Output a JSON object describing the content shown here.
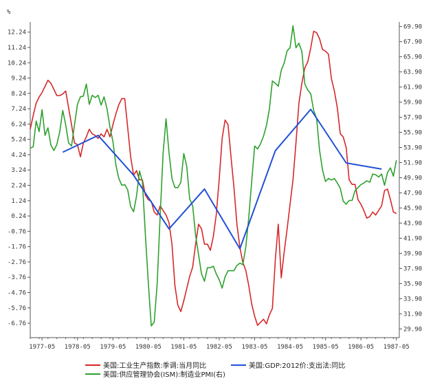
{
  "chart_data": {
    "type": "line",
    "title": "",
    "y_unit_label": "%",
    "x_ticks": [
      "1977-05",
      "1978-05",
      "1979-05",
      "1980-05",
      "1981-05",
      "1982-05",
      "1983-05",
      "1984-05",
      "1985-05",
      "1986-05",
      "1987-05"
    ],
    "y_left_ticks": [
      "12.24",
      "11.24",
      "10.24",
      "9.24",
      "8.24",
      "7.24",
      "6.24",
      "5.24",
      "4.24",
      "3.24",
      "2.24",
      "1.24",
      "0.24",
      "-0.76",
      "-1.76",
      "-2.76",
      "-3.76",
      "-4.76",
      "-5.76",
      "-6.76"
    ],
    "y_right_ticks": [
      "69.90",
      "67.90",
      "65.90",
      "63.90",
      "61.90",
      "59.90",
      "57.90",
      "55.90",
      "53.90",
      "51.90",
      "49.90",
      "47.90",
      "45.90",
      "43.90",
      "41.90",
      "39.90",
      "37.90",
      "35.90",
      "33.90",
      "31.90",
      "29.90"
    ],
    "y_left_range": [
      -7.7,
      12.9
    ],
    "y_right_range": [
      28.75,
      70.5
    ],
    "x_range": [
      "1977-01",
      "1987-06"
    ],
    "grid": false,
    "legend_placement": "bottom",
    "colors": {
      "ip": "#d62728",
      "pmi": "#2ca02c",
      "gdp": "#1f4fd6",
      "axis": "#555555"
    },
    "series": [
      {
        "key": "ip",
        "name": "美国:工业生产指数:季调:当月同比",
        "axis": "left",
        "points": [
          [
            "1977-01",
            5.9
          ],
          [
            "1977-02",
            6.8
          ],
          [
            "1977-03",
            7.6
          ],
          [
            "1977-04",
            8.0
          ],
          [
            "1977-05",
            8.3
          ],
          [
            "1977-06",
            8.7
          ],
          [
            "1977-07",
            9.1
          ],
          [
            "1977-08",
            8.9
          ],
          [
            "1977-09",
            8.5
          ],
          [
            "1977-10",
            8.1
          ],
          [
            "1977-11",
            8.1
          ],
          [
            "1977-12",
            8.2
          ],
          [
            "1978-01",
            8.4
          ],
          [
            "1978-02",
            7.3
          ],
          [
            "1978-03",
            6.2
          ],
          [
            "1978-04",
            5.0
          ],
          [
            "1978-05",
            4.9
          ],
          [
            "1978-06",
            4.1
          ],
          [
            "1978-07",
            5.0
          ],
          [
            "1978-08",
            5.4
          ],
          [
            "1978-09",
            5.9
          ],
          [
            "1978-10",
            5.6
          ],
          [
            "1978-11",
            5.5
          ],
          [
            "1978-12",
            5.3
          ],
          [
            "1979-01",
            5.6
          ],
          [
            "1979-02",
            5.4
          ],
          [
            "1979-03",
            5.9
          ],
          [
            "1979-04",
            5.4
          ],
          [
            "1979-05",
            6.2
          ],
          [
            "1979-06",
            6.9
          ],
          [
            "1979-07",
            7.5
          ],
          [
            "1979-08",
            7.9
          ],
          [
            "1979-09",
            7.9
          ],
          [
            "1979-10",
            6.0
          ],
          [
            "1979-11",
            4.1
          ],
          [
            "1979-12",
            2.9
          ],
          [
            "1980-01",
            3.2
          ],
          [
            "1980-02",
            2.6
          ],
          [
            "1980-03",
            2.6
          ],
          [
            "1980-04",
            1.6
          ],
          [
            "1980-05",
            1.3
          ],
          [
            "1980-06",
            1.2
          ],
          [
            "1980-07",
            0.5
          ],
          [
            "1980-08",
            0.3
          ],
          [
            "1980-09",
            0.9
          ],
          [
            "1980-10",
            0.6
          ],
          [
            "1980-11",
            0.3
          ],
          [
            "1980-12",
            -0.2
          ],
          [
            "1981-01",
            -1.6
          ],
          [
            "1981-02",
            -4.3
          ],
          [
            "1981-03",
            -5.6
          ],
          [
            "1981-04",
            -6.0
          ],
          [
            "1981-05",
            -5.3
          ],
          [
            "1981-06",
            -4.5
          ],
          [
            "1981-07",
            -3.7
          ],
          [
            "1981-08",
            -3.1
          ],
          [
            "1981-09",
            -1.6
          ],
          [
            "1981-10",
            -0.3
          ],
          [
            "1981-11",
            -0.6
          ],
          [
            "1981-12",
            -1.6
          ],
          [
            "1982-01",
            -1.6
          ],
          [
            "1982-02",
            -2.0
          ],
          [
            "1982-03",
            -1.1
          ],
          [
            "1982-04",
            0.3
          ],
          [
            "1982-05",
            2.6
          ],
          [
            "1982-06",
            5.3
          ],
          [
            "1982-07",
            6.5
          ],
          [
            "1982-08",
            6.2
          ],
          [
            "1982-09",
            4.1
          ],
          [
            "1982-10",
            2.1
          ],
          [
            "1982-11",
            -0.3
          ],
          [
            "1982-12",
            -1.8
          ],
          [
            "1983-01",
            -2.8
          ],
          [
            "1983-02",
            -3.3
          ],
          [
            "1983-03",
            -4.3
          ],
          [
            "1983-04",
            -5.5
          ],
          [
            "1983-05",
            -6.3
          ],
          [
            "1983-06",
            -6.9
          ],
          [
            "1983-07",
            -6.7
          ],
          [
            "1983-08",
            -6.5
          ],
          [
            "1983-09",
            -6.8
          ],
          [
            "1983-10",
            -6.2
          ],
          [
            "1983-11",
            -5.8
          ],
          [
            "1983-12",
            -2.6
          ],
          [
            "1984-01",
            -0.3
          ],
          [
            "1984-02",
            -3.8
          ],
          [
            "1984-03",
            -2.1
          ],
          [
            "1984-04",
            -0.6
          ],
          [
            "1984-05",
            1.0
          ],
          [
            "1984-06",
            2.6
          ],
          [
            "1984-07",
            5.0
          ],
          [
            "1984-08",
            7.6
          ],
          [
            "1984-09",
            8.9
          ],
          [
            "1984-10",
            9.9
          ],
          [
            "1984-11",
            10.3
          ],
          [
            "1984-12",
            11.2
          ],
          [
            "1985-01",
            12.3
          ],
          [
            "1985-02",
            12.2
          ],
          [
            "1985-03",
            11.8
          ],
          [
            "1985-04",
            11.1
          ],
          [
            "1985-05",
            11.0
          ],
          [
            "1985-06",
            10.8
          ],
          [
            "1985-07",
            9.2
          ],
          [
            "1985-08",
            8.4
          ],
          [
            "1985-09",
            7.3
          ],
          [
            "1985-10",
            5.6
          ],
          [
            "1985-11",
            5.4
          ],
          [
            "1985-12",
            4.7
          ],
          [
            "1986-01",
            2.6
          ],
          [
            "1986-02",
            2.3
          ],
          [
            "1986-03",
            2.3
          ],
          [
            "1986-04",
            1.3
          ],
          [
            "1986-05",
            1.0
          ],
          [
            "1986-06",
            0.6
          ],
          [
            "1986-07",
            0.1
          ],
          [
            "1986-08",
            0.2
          ],
          [
            "1986-09",
            0.5
          ],
          [
            "1986-10",
            0.3
          ],
          [
            "1986-11",
            0.6
          ],
          [
            "1986-12",
            0.9
          ],
          [
            "1987-01",
            1.9
          ],
          [
            "1987-02",
            2.0
          ],
          [
            "1987-03",
            1.3
          ],
          [
            "1987-04",
            0.5
          ],
          [
            "1987-05",
            0.4
          ]
        ]
      },
      {
        "key": "pmi",
        "name": "美国:供应管理协会(ISM):制造业PMI(右)",
        "axis": "right",
        "points": [
          [
            "1977-01",
            53.8
          ],
          [
            "1977-02",
            54.0
          ],
          [
            "1977-03",
            57.4
          ],
          [
            "1977-04",
            56.0
          ],
          [
            "1977-05",
            58.9
          ],
          [
            "1977-06",
            55.5
          ],
          [
            "1977-07",
            56.5
          ],
          [
            "1977-08",
            54.2
          ],
          [
            "1977-09",
            53.5
          ],
          [
            "1977-10",
            54.3
          ],
          [
            "1977-11",
            56.0
          ],
          [
            "1977-12",
            58.8
          ],
          [
            "1978-01",
            56.9
          ],
          [
            "1978-02",
            54.5
          ],
          [
            "1978-03",
            54.1
          ],
          [
            "1978-04",
            56.9
          ],
          [
            "1978-05",
            59.6
          ],
          [
            "1978-06",
            60.6
          ],
          [
            "1978-07",
            60.7
          ],
          [
            "1978-08",
            62.3
          ],
          [
            "1978-09",
            59.6
          ],
          [
            "1978-10",
            60.8
          ],
          [
            "1978-11",
            60.5
          ],
          [
            "1978-12",
            60.8
          ],
          [
            "1979-01",
            59.5
          ],
          [
            "1979-02",
            60.6
          ],
          [
            "1979-03",
            59.0
          ],
          [
            "1979-04",
            56.6
          ],
          [
            "1979-05",
            54.7
          ],
          [
            "1979-06",
            51.6
          ],
          [
            "1979-07",
            49.8
          ],
          [
            "1979-08",
            48.9
          ],
          [
            "1979-09",
            49.0
          ],
          [
            "1979-10",
            48.3
          ],
          [
            "1979-11",
            46.1
          ],
          [
            "1979-12",
            45.4
          ],
          [
            "1980-01",
            47.5
          ],
          [
            "1980-02",
            50.8
          ],
          [
            "1980-03",
            49.4
          ],
          [
            "1980-04",
            42.4
          ],
          [
            "1980-05",
            36.0
          ],
          [
            "1980-06",
            30.3
          ],
          [
            "1980-07",
            30.8
          ],
          [
            "1980-08",
            35.9
          ],
          [
            "1980-09",
            44.8
          ],
          [
            "1980-10",
            53.1
          ],
          [
            "1980-11",
            57.7
          ],
          [
            "1980-12",
            53.2
          ],
          [
            "1981-01",
            49.8
          ],
          [
            "1981-02",
            48.6
          ],
          [
            "1981-03",
            48.6
          ],
          [
            "1981-04",
            49.3
          ],
          [
            "1981-05",
            53.1
          ],
          [
            "1981-06",
            51.4
          ],
          [
            "1981-07",
            47.1
          ],
          [
            "1981-08",
            46.2
          ],
          [
            "1981-09",
            42.3
          ],
          [
            "1981-10",
            39.7
          ],
          [
            "1981-11",
            37.2
          ],
          [
            "1981-12",
            36.2
          ],
          [
            "1982-01",
            38.0
          ],
          [
            "1982-02",
            38.0
          ],
          [
            "1982-03",
            38.2
          ],
          [
            "1982-04",
            37.2
          ],
          [
            "1982-05",
            36.4
          ],
          [
            "1982-06",
            35.3
          ],
          [
            "1982-07",
            36.8
          ],
          [
            "1982-08",
            37.6
          ],
          [
            "1982-09",
            37.6
          ],
          [
            "1982-10",
            37.6
          ],
          [
            "1982-11",
            38.3
          ],
          [
            "1982-12",
            38.6
          ],
          [
            "1983-01",
            38.4
          ],
          [
            "1983-02",
            40.7
          ],
          [
            "1983-03",
            44.6
          ],
          [
            "1983-04",
            49.4
          ],
          [
            "1983-05",
            54.1
          ],
          [
            "1983-06",
            53.7
          ],
          [
            "1983-07",
            54.4
          ],
          [
            "1983-08",
            55.4
          ],
          [
            "1983-09",
            56.8
          ],
          [
            "1983-10",
            59.0
          ],
          [
            "1983-11",
            62.7
          ],
          [
            "1983-12",
            62.4
          ],
          [
            "1984-01",
            62.0
          ],
          [
            "1984-02",
            64.1
          ],
          [
            "1984-03",
            65.1
          ],
          [
            "1984-04",
            66.7
          ],
          [
            "1984-05",
            67.1
          ],
          [
            "1984-06",
            70.0
          ],
          [
            "1984-07",
            67.1
          ],
          [
            "1984-08",
            67.7
          ],
          [
            "1984-09",
            66.6
          ],
          [
            "1984-10",
            62.3
          ],
          [
            "1984-11",
            61.5
          ],
          [
            "1984-12",
            61.0
          ],
          [
            "1985-01",
            58.8
          ],
          [
            "1985-02",
            57.7
          ],
          [
            "1985-03",
            53.5
          ],
          [
            "1985-04",
            50.9
          ],
          [
            "1985-05",
            49.4
          ],
          [
            "1985-06",
            49.8
          ],
          [
            "1985-07",
            49.6
          ],
          [
            "1985-08",
            49.8
          ],
          [
            "1985-09",
            49.2
          ],
          [
            "1985-10",
            48.5
          ],
          [
            "1985-11",
            46.8
          ],
          [
            "1985-12",
            46.4
          ],
          [
            "1986-01",
            46.9
          ],
          [
            "1986-02",
            46.9
          ],
          [
            "1986-03",
            48.2
          ],
          [
            "1986-04",
            48.6
          ],
          [
            "1986-05",
            49.0
          ],
          [
            "1986-06",
            49.2
          ],
          [
            "1986-07",
            49.5
          ],
          [
            "1986-08",
            49.3
          ],
          [
            "1986-09",
            50.4
          ],
          [
            "1986-10",
            50.3
          ],
          [
            "1986-11",
            50.0
          ],
          [
            "1986-12",
            50.4
          ],
          [
            "1987-01",
            48.9
          ],
          [
            "1987-02",
            50.6
          ],
          [
            "1987-03",
            51.2
          ],
          [
            "1987-04",
            50.1
          ],
          [
            "1987-05",
            52.2
          ]
        ]
      },
      {
        "key": "gdp",
        "name": "美国:GDP:2012价:支出法:同比",
        "axis": "left",
        "points": [
          [
            "1977-12",
            4.4
          ],
          [
            "1978-12",
            5.5
          ],
          [
            "1979-12",
            2.9
          ],
          [
            "1980-12",
            -0.6
          ],
          [
            "1981-12",
            2.0
          ],
          [
            "1982-12",
            -1.9
          ],
          [
            "1983-12",
            4.5
          ],
          [
            "1984-12",
            7.2
          ],
          [
            "1985-12",
            3.7
          ],
          [
            "1986-12",
            3.3
          ]
        ]
      }
    ]
  }
}
